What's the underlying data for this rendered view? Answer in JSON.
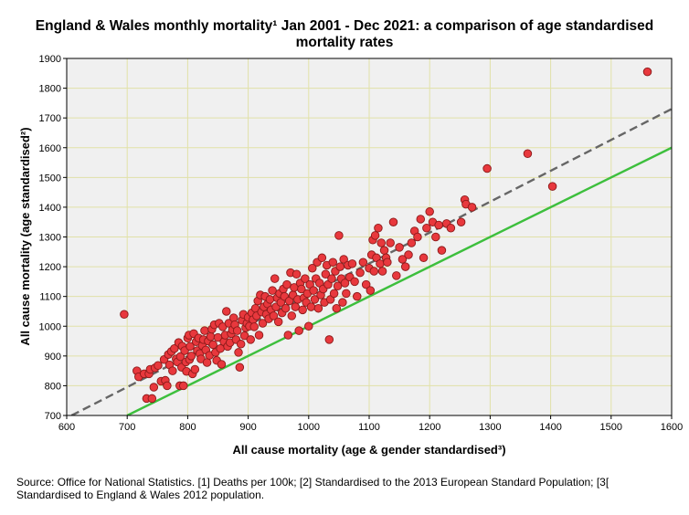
{
  "chart_data": {
    "type": "scatter",
    "title_lines": [
      "England & Wales monthly mortality¹ Jan 2001 - Dec 2021: a comparison of age standardised",
      "mortality rates"
    ],
    "xlabel": "All cause mortality (age & gender standardised³)",
    "ylabel": "All cause mortality (age standardised²)",
    "xlim": [
      600,
      1600
    ],
    "ylim": [
      700,
      1900
    ],
    "x_ticks": [
      600,
      700,
      800,
      900,
      1000,
      1100,
      1200,
      1300,
      1400,
      1500,
      1600
    ],
    "y_ticks": [
      700,
      800,
      900,
      1000,
      1100,
      1200,
      1300,
      1400,
      1500,
      1600,
      1700,
      1800,
      1900
    ],
    "grid": true,
    "colors": {
      "point_fill": "#e8383d",
      "point_stroke": "#8b1a1a",
      "trend_line": "#666666",
      "identity_line": "#3dbf3d",
      "plot_background": "#f0f0f0",
      "grid_line": "#e1e1a8"
    },
    "reference_lines": [
      {
        "name": "identity (y = x)",
        "style": "solid",
        "color": "#3dbf3d",
        "from": [
          700,
          700
        ],
        "to": [
          1600,
          1600
        ]
      },
      {
        "name": "fitted trend",
        "style": "dashed",
        "color": "#666666",
        "from": [
          608,
          700
        ],
        "to": [
          1600,
          1730
        ]
      }
    ],
    "series": [
      {
        "name": "Monthly mortality",
        "points": [
          [
            695,
            1040
          ],
          [
            716,
            850
          ],
          [
            719,
            830
          ],
          [
            728,
            840
          ],
          [
            732,
            757
          ],
          [
            736,
            840
          ],
          [
            738,
            855
          ],
          [
            741,
            757
          ],
          [
            744,
            795
          ],
          [
            746,
            860
          ],
          [
            751,
            868
          ],
          [
            756,
            815
          ],
          [
            761,
            888
          ],
          [
            763,
            818
          ],
          [
            766,
            800
          ],
          [
            768,
            905
          ],
          [
            770,
            870
          ],
          [
            773,
            915
          ],
          [
            775,
            850
          ],
          [
            778,
            925
          ],
          [
            781,
            890
          ],
          [
            783,
            880
          ],
          [
            785,
            945
          ],
          [
            787,
            800
          ],
          [
            788,
            898
          ],
          [
            790,
            862
          ],
          [
            791,
            933
          ],
          [
            793,
            800
          ],
          [
            795,
            918
          ],
          [
            797,
            880
          ],
          [
            798,
            848
          ],
          [
            800,
            960
          ],
          [
            802,
            970
          ],
          [
            803,
            888
          ],
          [
            804,
            932
          ],
          [
            806,
            900
          ],
          [
            808,
            840
          ],
          [
            810,
            975
          ],
          [
            812,
            855
          ],
          [
            814,
            948
          ],
          [
            816,
            918
          ],
          [
            818,
            960
          ],
          [
            820,
            908
          ],
          [
            822,
            890
          ],
          [
            824,
            935
          ],
          [
            826,
            955
          ],
          [
            828,
            985
          ],
          [
            830,
            920
          ],
          [
            832,
            878
          ],
          [
            834,
            950
          ],
          [
            836,
            902
          ],
          [
            838,
            965
          ],
          [
            840,
            990
          ],
          [
            842,
            938
          ],
          [
            844,
            1005
          ],
          [
            846,
            912
          ],
          [
            848,
            885
          ],
          [
            850,
            962
          ],
          [
            852,
            1010
          ],
          [
            854,
            925
          ],
          [
            856,
            872
          ],
          [
            858,
            998
          ],
          [
            860,
            948
          ],
          [
            862,
            970
          ],
          [
            864,
            1050
          ],
          [
            866,
            932
          ],
          [
            868,
            1010
          ],
          [
            870,
            945
          ],
          [
            872,
            975
          ],
          [
            874,
            988
          ],
          [
            876,
            1028
          ],
          [
            878,
            1005
          ],
          [
            880,
            955
          ],
          [
            882,
            985
          ],
          [
            884,
            912
          ],
          [
            886,
            862
          ],
          [
            888,
            940
          ],
          [
            890,
            1020
          ],
          [
            892,
            1040
          ],
          [
            894,
            968
          ],
          [
            896,
            995
          ],
          [
            898,
            1010
          ],
          [
            900,
            1030
          ],
          [
            902,
            1000
          ],
          [
            904,
            955
          ],
          [
            906,
            1045
          ],
          [
            908,
            1022
          ],
          [
            910,
            998
          ],
          [
            912,
            1060
          ],
          [
            914,
            1035
          ],
          [
            916,
            1085
          ],
          [
            918,
            970
          ],
          [
            920,
            1105
          ],
          [
            922,
            1048
          ],
          [
            924,
            1010
          ],
          [
            926,
            1065
          ],
          [
            928,
            1100
          ],
          [
            930,
            1040
          ],
          [
            932,
            1075
          ],
          [
            934,
            1025
          ],
          [
            936,
            1090
          ],
          [
            938,
            1055
          ],
          [
            940,
            1120
          ],
          [
            942,
            1035
          ],
          [
            944,
            1160
          ],
          [
            946,
            1065
          ],
          [
            948,
            1095
          ],
          [
            950,
            1015
          ],
          [
            952,
            1110
          ],
          [
            954,
            1080
          ],
          [
            956,
            1045
          ],
          [
            958,
            1125
          ],
          [
            960,
            1100
          ],
          [
            962,
            1060
          ],
          [
            964,
            1140
          ],
          [
            966,
            970
          ],
          [
            968,
            1085
          ],
          [
            970,
            1180
          ],
          [
            972,
            1035
          ],
          [
            974,
            1105
          ],
          [
            976,
            1130
          ],
          [
            978,
            1065
          ],
          [
            980,
            1175
          ],
          [
            982,
            1090
          ],
          [
            984,
            985
          ],
          [
            986,
            1145
          ],
          [
            988,
            1125
          ],
          [
            990,
            1055
          ],
          [
            992,
            1095
          ],
          [
            994,
            1160
          ],
          [
            996,
            1080
          ],
          [
            998,
            1110
          ],
          [
            1000,
            1000
          ],
          [
            1002,
            1140
          ],
          [
            1004,
            1065
          ],
          [
            1006,
            1195
          ],
          [
            1008,
            1120
          ],
          [
            1010,
            1090
          ],
          [
            1012,
            1160
          ],
          [
            1014,
            1215
          ],
          [
            1016,
            1060
          ],
          [
            1018,
            1145
          ],
          [
            1020,
            1105
          ],
          [
            1022,
            1230
          ],
          [
            1024,
            1125
          ],
          [
            1026,
            1080
          ],
          [
            1028,
            1175
          ],
          [
            1030,
            1205
          ],
          [
            1032,
            1140
          ],
          [
            1034,
            955
          ],
          [
            1036,
            1090
          ],
          [
            1038,
            1160
          ],
          [
            1040,
            1215
          ],
          [
            1042,
            1110
          ],
          [
            1044,
            1185
          ],
          [
            1046,
            1060
          ],
          [
            1048,
            1135
          ],
          [
            1050,
            1305
          ],
          [
            1052,
            1200
          ],
          [
            1054,
            1160
          ],
          [
            1056,
            1080
          ],
          [
            1058,
            1225
          ],
          [
            1060,
            1145
          ],
          [
            1062,
            1110
          ],
          [
            1065,
            1205
          ],
          [
            1068,
            1165
          ],
          [
            1072,
            1210
          ],
          [
            1076,
            1150
          ],
          [
            1080,
            1100
          ],
          [
            1085,
            1180
          ],
          [
            1090,
            1215
          ],
          [
            1095,
            1140
          ],
          [
            1100,
            1195
          ],
          [
            1102,
            1120
          ],
          [
            1104,
            1240
          ],
          [
            1106,
            1290
          ],
          [
            1108,
            1185
          ],
          [
            1110,
            1305
          ],
          [
            1112,
            1230
          ],
          [
            1115,
            1330
          ],
          [
            1118,
            1210
          ],
          [
            1120,
            1280
          ],
          [
            1122,
            1185
          ],
          [
            1125,
            1255
          ],
          [
            1128,
            1230
          ],
          [
            1130,
            1215
          ],
          [
            1135,
            1280
          ],
          [
            1140,
            1350
          ],
          [
            1145,
            1170
          ],
          [
            1150,
            1265
          ],
          [
            1155,
            1225
          ],
          [
            1160,
            1200
          ],
          [
            1165,
            1240
          ],
          [
            1170,
            1280
          ],
          [
            1175,
            1320
          ],
          [
            1180,
            1300
          ],
          [
            1185,
            1360
          ],
          [
            1190,
            1230
          ],
          [
            1195,
            1330
          ],
          [
            1200,
            1385
          ],
          [
            1205,
            1350
          ],
          [
            1210,
            1300
          ],
          [
            1215,
            1340
          ],
          [
            1220,
            1255
          ],
          [
            1228,
            1345
          ],
          [
            1235,
            1330
          ],
          [
            1252,
            1350
          ],
          [
            1258,
            1425
          ],
          [
            1260,
            1410
          ],
          [
            1270,
            1400
          ],
          [
            1295,
            1530
          ],
          [
            1362,
            1580
          ],
          [
            1403,
            1470
          ],
          [
            1560,
            1855
          ]
        ]
      }
    ]
  },
  "source_lines": [
    "Source: Office for National Statistics. [1] Deaths per 100k; [2] Standardised to the 2013 European Standard Population; [3[",
    "Standardised to England & Wales 2012 population."
  ]
}
